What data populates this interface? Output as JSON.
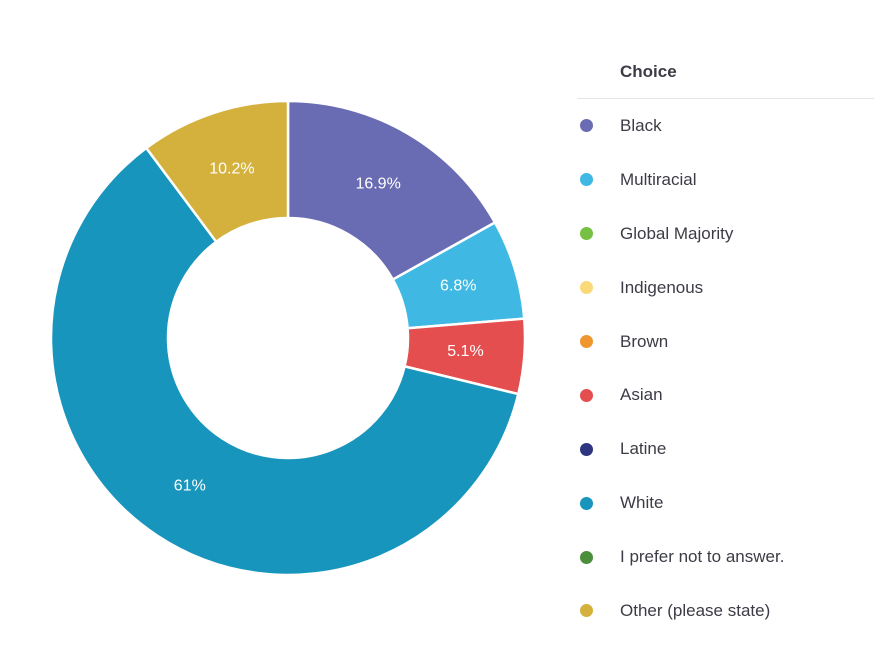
{
  "chart_data": {
    "type": "pie",
    "variant": "donut",
    "legend_title": "Choice",
    "legend_position": "right",
    "categories": [
      "Black",
      "Multiracial",
      "Global Majority",
      "Indigenous",
      "Brown",
      "Asian",
      "Latine",
      "White",
      "I prefer not to answer.",
      "Other (please state)"
    ],
    "values": [
      16.9,
      6.8,
      0,
      0,
      0,
      5.1,
      0,
      61,
      0,
      10.2
    ],
    "data_labels": [
      "16.9%",
      "6.8%",
      "",
      "",
      "",
      "5.1%",
      "",
      "61%",
      "",
      "10.2%"
    ],
    "colors": [
      "#6a6cb3",
      "#3fb8e3",
      "#76c043",
      "#f9d978",
      "#f0962f",
      "#e44e4e",
      "#2d3480",
      "#1895bd",
      "#4c8f3a",
      "#d4b13d"
    ]
  }
}
